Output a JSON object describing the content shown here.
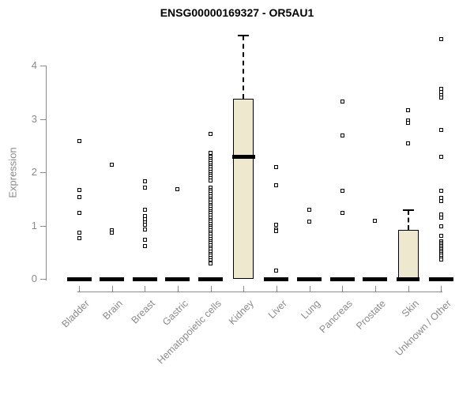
{
  "title": "ENSG00000169327 - OR5AU1",
  "y_axis": {
    "label": "Expression",
    "ticks": [
      0,
      1,
      2,
      3,
      4
    ]
  },
  "colors": {
    "title_text": "#000000",
    "axis": "#8a8a8a",
    "axis_text": "#8a8a8a",
    "box_fill": "#ede8ce",
    "box_border": "#000000",
    "point": "#000000"
  },
  "chart_data": {
    "type": "boxplot",
    "title": "ENSG00000169327 - OR5AU1",
    "xlabel": "",
    "ylabel": "Expression",
    "ylim": [
      0,
      4.6
    ],
    "grid": false,
    "categories": [
      "Bladder",
      "Brain",
      "Breast",
      "Gastric",
      "Hematopoietic cells",
      "Kidney",
      "Liver",
      "Lung",
      "Pancreas",
      "Prostate",
      "Skin",
      "Unknown / Other"
    ],
    "series": [
      {
        "name": "Bladder",
        "q1": 0,
        "median": 0,
        "q3": 0,
        "whisker_high": 0,
        "has_box": false,
        "points": [
          2.59,
          1.66,
          1.53,
          1.24,
          0.87,
          0.76
        ]
      },
      {
        "name": "Brain",
        "q1": 0,
        "median": 0,
        "q3": 0,
        "whisker_high": 0,
        "has_box": false,
        "points": [
          2.14,
          0.91,
          0.87
        ]
      },
      {
        "name": "Breast",
        "q1": 0,
        "median": 0,
        "q3": 0,
        "whisker_high": 0,
        "has_box": false,
        "points": [
          1.83,
          1.71,
          1.29,
          1.18,
          1.12,
          1.06,
          1.01,
          0.93,
          0.74,
          0.62
        ]
      },
      {
        "name": "Gastric",
        "q1": 0,
        "median": 0,
        "q3": 0,
        "whisker_high": 0,
        "has_box": false,
        "points": [
          1.68
        ]
      },
      {
        "name": "Hematopoietic cells",
        "q1": 0,
        "median": 0,
        "q3": 0,
        "whisker_high": 0,
        "has_box": false,
        "points": [
          2.72,
          2.37,
          2.29,
          2.25,
          2.21,
          2.17,
          2.13,
          2.09,
          2.05,
          2.01,
          1.97,
          1.93,
          1.89,
          1.85,
          1.71,
          1.67,
          1.63,
          1.59,
          1.55,
          1.51,
          1.47,
          1.43,
          1.39,
          1.35,
          1.31,
          1.27,
          1.23,
          1.19,
          1.15,
          1.11,
          1.07,
          1.03,
          0.99,
          0.95,
          0.91,
          0.87,
          0.83,
          0.79,
          0.75,
          0.71,
          0.67,
          0.63,
          0.59,
          0.55,
          0.51,
          0.47,
          0.43,
          0.39,
          0.35,
          0.31,
          0.29
        ]
      },
      {
        "name": "Kidney",
        "q1": 0,
        "median": 2.29,
        "q3": 3.38,
        "whisker_high": 4.57,
        "has_box": true,
        "points": []
      },
      {
        "name": "Liver",
        "q1": 0,
        "median": 0,
        "q3": 0,
        "whisker_high": 0,
        "has_box": false,
        "points": [
          2.09,
          1.75,
          1.02,
          0.93,
          0.89,
          0.16
        ]
      },
      {
        "name": "Lung",
        "q1": 0,
        "median": 0,
        "q3": 0,
        "whisker_high": 0,
        "has_box": false,
        "points": [
          1.29,
          1.07
        ]
      },
      {
        "name": "Pancreas",
        "q1": 0,
        "median": 0,
        "q3": 0,
        "whisker_high": 0,
        "has_box": false,
        "points": [
          3.32,
          2.69,
          1.65,
          1.24
        ]
      },
      {
        "name": "Prostate",
        "q1": 0,
        "median": 0,
        "q3": 0,
        "whisker_high": 0,
        "has_box": false,
        "points": [
          1.09
        ]
      },
      {
        "name": "Skin",
        "q1": 0,
        "median": 0,
        "q3": 0.92,
        "whisker_high": 1.29,
        "has_box": true,
        "points": [
          3.17,
          2.97,
          2.92,
          2.54
        ]
      },
      {
        "name": "Unknown / Other",
        "q1": 0,
        "median": 0,
        "q3": 0,
        "whisker_high": 0,
        "has_box": false,
        "points": [
          4.49,
          3.56,
          3.51,
          3.45,
          3.4,
          2.79,
          2.29,
          1.65,
          1.52,
          1.46,
          1.21,
          1.15,
          0.99,
          0.81,
          0.7,
          0.67,
          0.64,
          0.61,
          0.58,
          0.55,
          0.52,
          0.49,
          0.46,
          0.43,
          0.4,
          0.37
        ]
      }
    ]
  }
}
